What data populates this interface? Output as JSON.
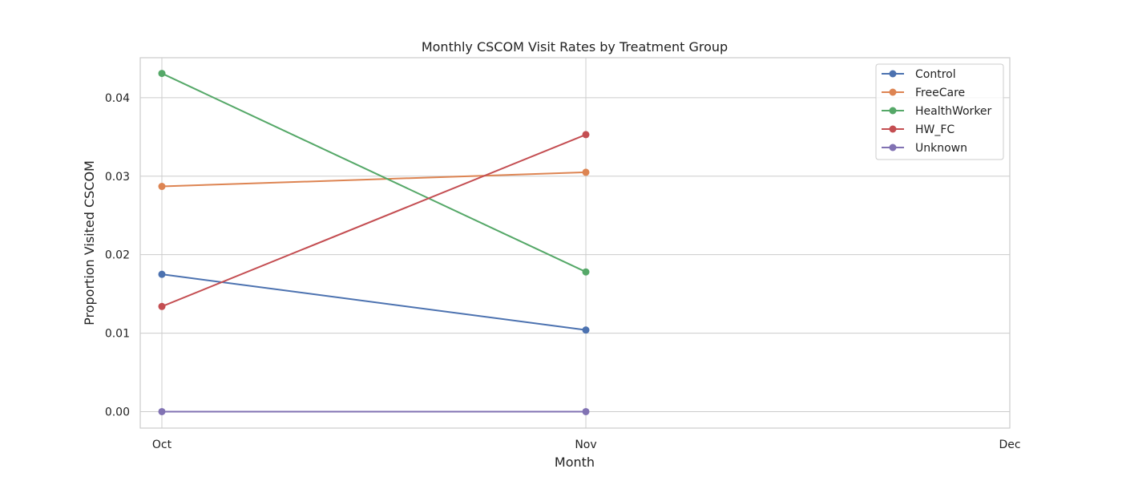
{
  "chart_data": {
    "type": "line",
    "title": "Monthly CSCOM Visit Rates by Treatment Group",
    "xlabel": "Month",
    "ylabel": "Proportion Visited CSCOM",
    "categories": [
      "Oct",
      "Nov",
      "Dec"
    ],
    "yticks": [
      "0.00",
      "0.01",
      "0.02",
      "0.03",
      "0.04"
    ],
    "ylim": [
      -0.0021,
      0.0451
    ],
    "grid": true,
    "legend_position": "top-right",
    "series": [
      {
        "name": "Control",
        "color": "#4c72b0",
        "values": [
          0.0175,
          0.0104,
          null
        ]
      },
      {
        "name": "FreeCare",
        "color": "#dd8452",
        "values": [
          0.0287,
          0.0305,
          null
        ]
      },
      {
        "name": "HealthWorker",
        "color": "#55a868",
        "values": [
          0.0431,
          0.0178,
          null
        ]
      },
      {
        "name": "HW_FC",
        "color": "#c44e52",
        "values": [
          0.0134,
          0.0353,
          null
        ]
      },
      {
        "name": "Unknown",
        "color": "#8172b3",
        "values": [
          0.0,
          0.0,
          null
        ]
      }
    ]
  }
}
